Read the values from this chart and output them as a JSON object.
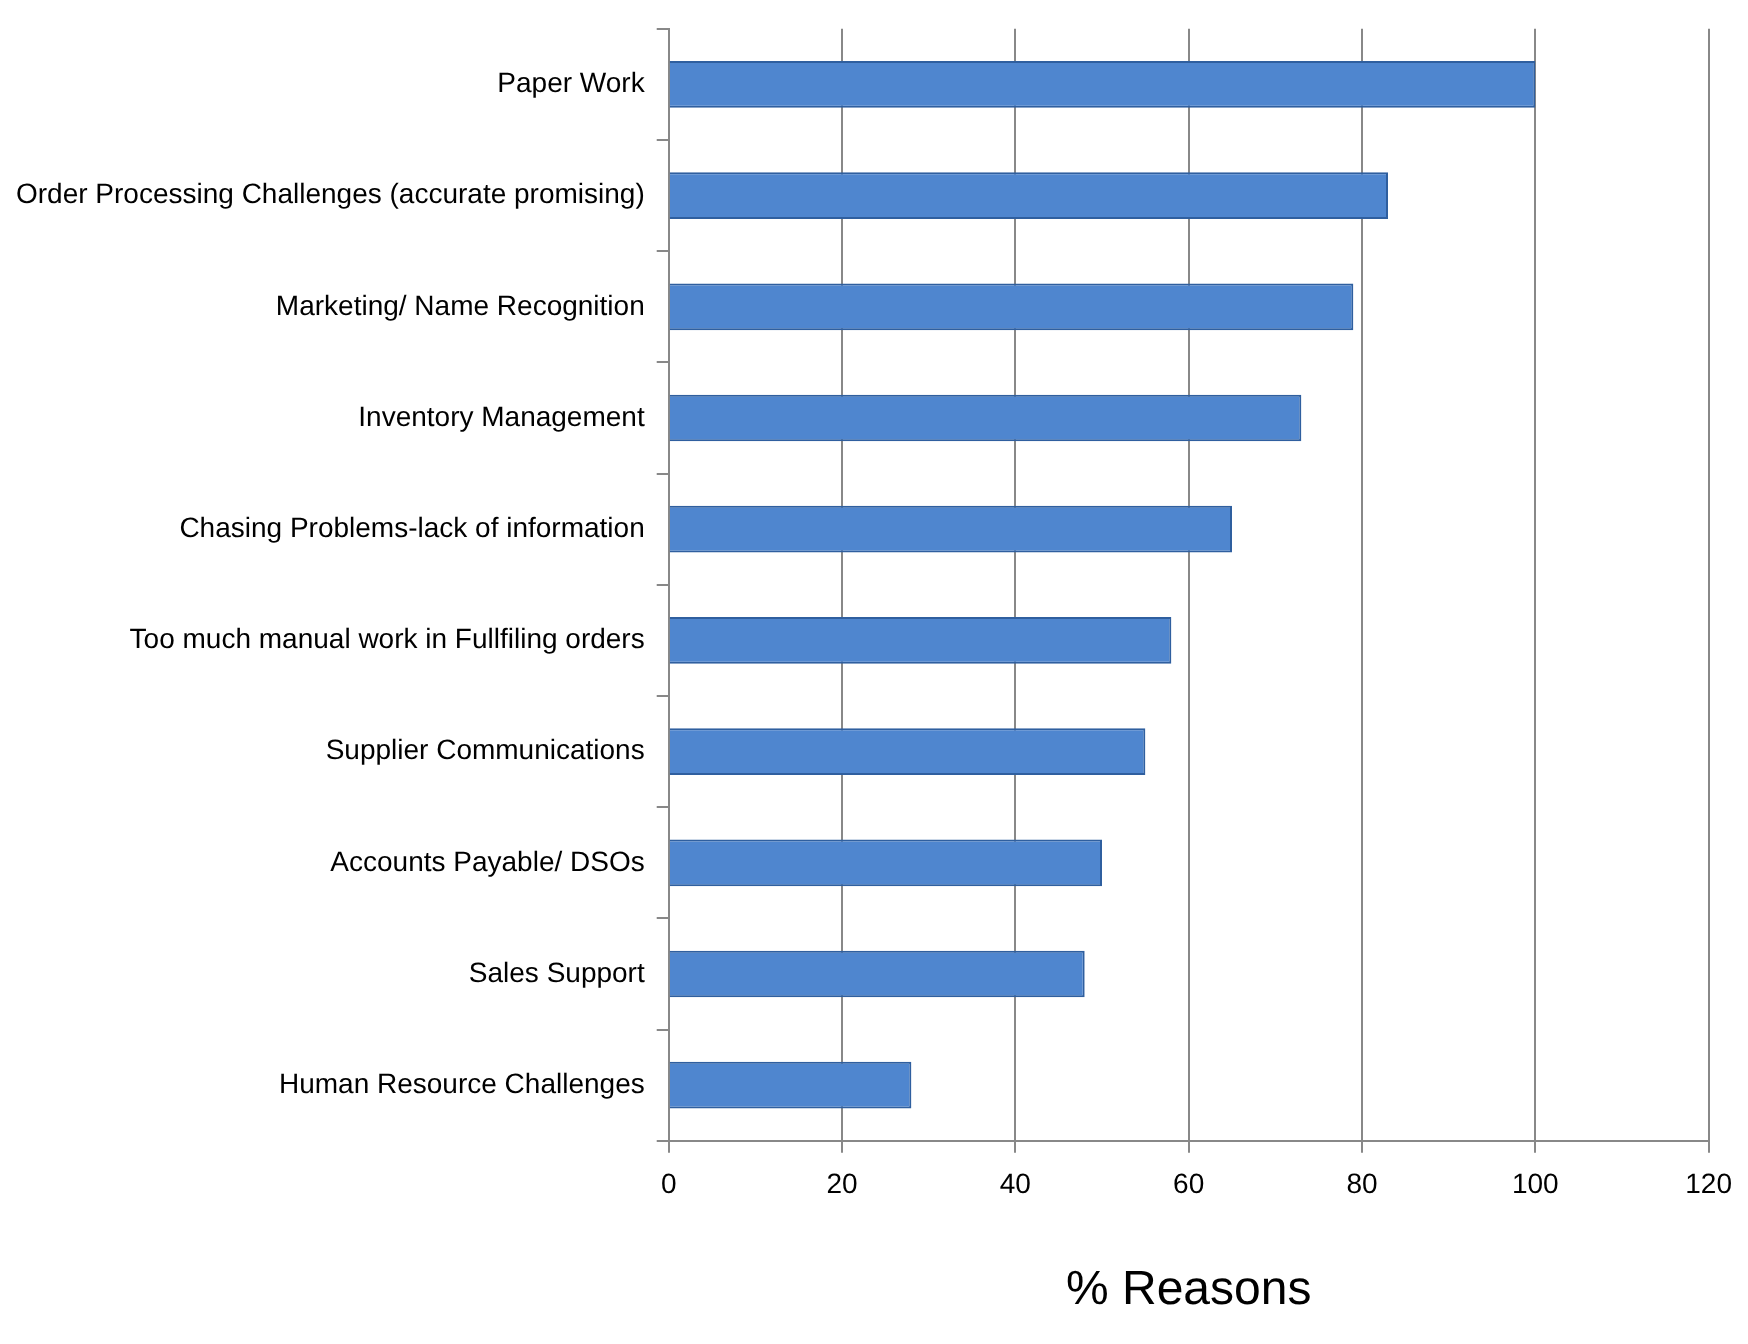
{
  "chart_data": {
    "type": "bar",
    "orientation": "horizontal",
    "xlabel": "% Reasons",
    "categories": [
      "Paper Work",
      "Order Processing Challenges (accurate promising)",
      "Marketing/ Name Recognition",
      "Inventory Management",
      "Chasing Problems-lack of information",
      "Too much manual work in Fullfiling orders",
      "Supplier Communications",
      "Accounts Payable/ DSOs",
      "Sales Support",
      "Human Resource Challenges"
    ],
    "values": [
      100,
      83,
      79,
      73,
      65,
      58,
      55,
      50,
      48,
      28
    ],
    "color": "#4f86cf",
    "xlim": [
      0,
      120
    ],
    "xticks": [
      0,
      20,
      40,
      60,
      80,
      100,
      120
    ],
    "grid": "x",
    "legend": false
  }
}
